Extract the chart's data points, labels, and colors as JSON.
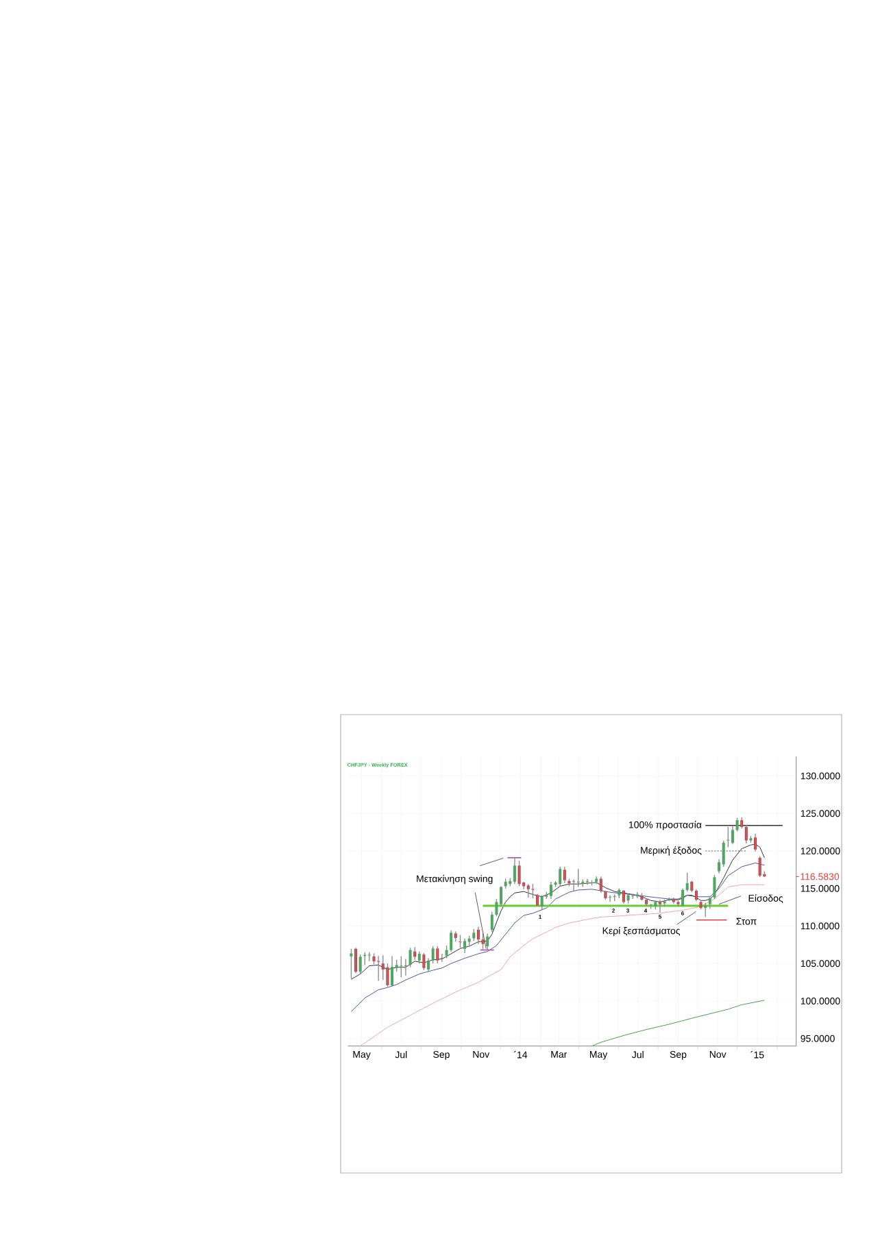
{
  "chart_data": {
    "type": "candlestick",
    "title": "CHFJPY - Weekly  FOREX",
    "xlim": [
      "2013-04-10",
      "2015-03-02"
    ],
    "ylim": [
      94,
      132.6
    ],
    "xticks": [
      {
        "value": "2013-05-01",
        "label": "May"
      },
      {
        "value": "2013-06-01",
        "label": null
      },
      {
        "value": "2013-07-01",
        "label": "Jul"
      },
      {
        "value": "2013-08-01",
        "label": null
      },
      {
        "value": "2013-09-01",
        "label": "Sep"
      },
      {
        "value": "2013-10-01",
        "label": null
      },
      {
        "value": "2013-11-01",
        "label": "Nov"
      },
      {
        "value": "2013-12-01",
        "label": null
      },
      {
        "value": "2014-01-01",
        "label": "´14"
      },
      {
        "value": "2014-02-01",
        "label": null
      },
      {
        "value": "2014-03-01",
        "label": "Mar"
      },
      {
        "value": "2014-04-01",
        "label": null
      },
      {
        "value": "2014-05-01",
        "label": "May"
      },
      {
        "value": "2014-06-01",
        "label": null
      },
      {
        "value": "2014-07-01",
        "label": "Jul"
      },
      {
        "value": "2014-08-01",
        "label": null
      },
      {
        "value": "2014-09-01",
        "label": "Sep"
      },
      {
        "value": "2014-10-01",
        "label": null
      },
      {
        "value": "2014-11-01",
        "label": "Nov"
      },
      {
        "value": "2014-12-01",
        "label": null
      },
      {
        "value": "2015-01-01",
        "label": "´15"
      },
      {
        "value": "2015-02-01",
        "label": null
      }
    ],
    "yticks": [
      {
        "value": 95,
        "label": "95.0000"
      },
      {
        "value": 100,
        "label": "100.0000"
      },
      {
        "value": 105,
        "label": "105.0000"
      },
      {
        "value": 110,
        "label": "110.0000"
      },
      {
        "value": 115,
        "label": "115.0000"
      },
      {
        "value": 120,
        "label": "120.0000"
      },
      {
        "value": 125,
        "label": "125.0000"
      },
      {
        "value": 130,
        "label": "130.0000"
      }
    ],
    "grid": true,
    "series": [
      {
        "x": [
          "2013-04-15",
          "2013-04-22",
          "2013-04-29",
          "2013-05-06",
          "2013-05-13",
          "2013-05-20",
          "2013-05-27",
          "2013-06-03",
          "2013-06-10",
          "2013-06-17",
          "2013-06-24",
          "2013-07-01",
          "2013-07-08",
          "2013-07-15",
          "2013-07-22",
          "2013-07-29",
          "2013-08-05",
          "2013-08-12",
          "2013-08-19",
          "2013-08-26",
          "2013-09-02",
          "2013-09-09",
          "2013-09-16",
          "2013-09-23",
          "2013-09-30",
          "2013-10-07",
          "2013-10-14",
          "2013-10-21",
          "2013-10-28",
          "2013-11-04",
          "2013-11-11",
          "2013-11-18",
          "2013-11-25",
          "2013-12-02",
          "2013-12-09",
          "2013-12-16",
          "2013-12-23",
          "2013-12-30",
          "2014-01-06",
          "2014-01-13",
          "2014-01-20",
          "2014-01-27",
          "2014-02-03",
          "2014-02-10",
          "2014-02-17",
          "2014-02-24",
          "2014-03-03",
          "2014-03-10",
          "2014-03-17",
          "2014-03-24",
          "2014-03-31",
          "2014-04-07",
          "2014-04-14",
          "2014-04-21",
          "2014-04-28",
          "2014-05-05",
          "2014-05-12",
          "2014-05-19",
          "2014-05-26",
          "2014-06-02",
          "2014-06-09",
          "2014-06-16",
          "2014-06-23",
          "2014-06-30",
          "2014-07-07",
          "2014-07-14",
          "2014-07-21",
          "2014-07-28",
          "2014-08-04",
          "2014-08-11",
          "2014-08-18",
          "2014-08-25",
          "2014-09-01",
          "2014-09-08",
          "2014-09-15",
          "2014-09-22",
          "2014-09-29",
          "2014-10-06",
          "2014-10-13",
          "2014-10-20",
          "2014-10-27",
          "2014-11-03",
          "2014-11-10",
          "2014-11-17",
          "2014-11-24",
          "2014-12-01",
          "2014-12-08",
          "2014-12-15",
          "2014-12-22",
          "2014-12-29",
          "2015-01-05",
          "2015-01-12"
        ],
        "ohlc": [
          [
            105.95,
            106.95,
            103.0,
            106.35
          ],
          [
            106.95,
            107.1,
            103.7,
            103.9
          ],
          [
            103.9,
            106.2,
            103.6,
            105.9
          ],
          [
            106.0,
            106.5,
            104.8,
            106.15
          ],
          [
            106.1,
            106.5,
            105.3,
            106.15
          ],
          [
            105.95,
            106.35,
            104.9,
            105.3
          ],
          [
            105.3,
            106.0,
            102.7,
            105.25
          ],
          [
            105.0,
            106.1,
            102.8,
            104.2
          ],
          [
            104.5,
            105.0,
            101.9,
            102.1
          ],
          [
            102.1,
            106.0,
            101.9,
            104.55
          ],
          [
            104.4,
            105.5,
            103.9,
            104.8
          ],
          [
            104.65,
            105.95,
            103.15,
            104.7
          ],
          [
            104.65,
            105.6,
            103.4,
            104.75
          ],
          [
            104.8,
            107.1,
            104.5,
            106.8
          ],
          [
            106.6,
            107.2,
            105.5,
            105.9
          ],
          [
            105.4,
            106.6,
            105.0,
            106.3
          ],
          [
            106.2,
            106.4,
            104.1,
            104.4
          ],
          [
            104.2,
            105.7,
            103.9,
            105.4
          ],
          [
            105.4,
            107.3,
            105.0,
            107.0
          ],
          [
            107.0,
            107.3,
            105.0,
            105.4
          ],
          [
            105.6,
            106.3,
            105.2,
            105.75
          ],
          [
            106.05,
            107.4,
            105.7,
            106.8
          ],
          [
            106.8,
            109.4,
            106.6,
            109.1
          ],
          [
            109.0,
            109.3,
            107.9,
            108.4
          ],
          [
            107.9,
            108.8,
            107.1,
            107.85
          ],
          [
            106.95,
            108.3,
            106.4,
            108.0
          ],
          [
            107.9,
            108.7,
            107.4,
            108.3
          ],
          [
            108.35,
            109.6,
            108.0,
            109.1
          ],
          [
            109.5,
            109.9,
            107.6,
            108.2
          ],
          [
            108.2,
            109.0,
            106.9,
            107.6
          ],
          [
            107.3,
            109.0,
            106.8,
            108.6
          ],
          [
            109.5,
            111.9,
            109.2,
            111.5
          ],
          [
            111.5,
            113.6,
            111.3,
            113.2
          ],
          [
            112.9,
            115.3,
            112.6,
            115.2
          ],
          [
            115.3,
            116.3,
            115.0,
            115.9
          ],
          [
            115.6,
            116.4,
            115.3,
            116.0
          ],
          [
            115.9,
            119.1,
            115.6,
            118.05
          ],
          [
            118.05,
            118.7,
            115.3,
            115.6
          ],
          [
            115.8,
            115.9,
            114.9,
            115.3
          ],
          [
            115.4,
            115.6,
            113.8,
            114.9
          ],
          [
            114.9,
            115.6,
            113.7,
            114.85
          ],
          [
            114.1,
            114.3,
            112.7,
            112.75
          ],
          [
            112.6,
            114.1,
            112.1,
            113.9
          ],
          [
            113.9,
            114.55,
            113.6,
            114.1
          ],
          [
            114.0,
            115.9,
            113.6,
            115.5
          ],
          [
            115.5,
            116.0,
            115.2,
            115.8
          ],
          [
            115.6,
            117.9,
            115.3,
            117.6
          ],
          [
            117.5,
            117.9,
            115.7,
            116.1
          ],
          [
            116.0,
            116.3,
            115.3,
            115.7
          ],
          [
            115.9,
            116.2,
            114.7,
            116.0
          ],
          [
            115.8,
            117.6,
            115.2,
            115.9
          ],
          [
            115.6,
            116.2,
            115.2,
            115.9
          ],
          [
            115.9,
            116.3,
            115.5,
            115.95
          ],
          [
            115.7,
            116.1,
            115.4,
            115.8
          ],
          [
            115.9,
            116.6,
            115.6,
            116.3
          ],
          [
            116.3,
            116.6,
            114.4,
            114.7
          ],
          [
            114.6,
            114.7,
            113.5,
            113.7
          ],
          [
            113.8,
            114.1,
            113.2,
            113.9
          ],
          [
            113.9,
            114.2,
            113.3,
            113.95
          ],
          [
            114.1,
            115.0,
            113.7,
            114.8
          ],
          [
            114.7,
            114.8,
            113.0,
            113.2
          ],
          [
            113.4,
            114.3,
            113.0,
            114.1
          ],
          [
            114.0,
            114.3,
            113.6,
            114.05
          ],
          [
            113.95,
            114.5,
            113.7,
            114.2
          ],
          [
            114.0,
            114.4,
            113.4,
            113.5
          ],
          [
            113.5,
            113.7,
            112.7,
            112.9
          ],
          [
            112.8,
            112.9,
            112.3,
            112.85
          ],
          [
            112.6,
            113.4,
            112.2,
            113.2
          ],
          [
            113.2,
            113.5,
            111.8,
            112.9
          ],
          [
            113.0,
            113.5,
            112.6,
            113.3
          ],
          [
            113.5,
            113.8,
            113.3,
            113.6
          ],
          [
            113.6,
            113.8,
            113.0,
            113.2
          ],
          [
            113.2,
            113.4,
            112.6,
            112.9
          ],
          [
            112.7,
            115.0,
            112.6,
            114.8
          ],
          [
            114.8,
            117.1,
            114.6,
            115.7
          ],
          [
            115.9,
            116.0,
            114.5,
            114.7
          ],
          [
            114.7,
            114.9,
            113.3,
            113.5
          ],
          [
            113.2,
            113.4,
            112.2,
            112.4
          ],
          [
            112.4,
            113.1,
            111.2,
            112.7
          ],
          [
            112.9,
            114.0,
            112.3,
            113.7
          ],
          [
            113.8,
            116.8,
            113.6,
            116.5
          ],
          [
            117.3,
            118.9,
            117.0,
            118.5
          ],
          [
            118.2,
            121.4,
            117.9,
            121.1
          ],
          [
            121.4,
            123.2,
            120.5,
            121.5
          ],
          [
            121.1,
            123.3,
            120.9,
            122.8
          ],
          [
            122.8,
            124.4,
            122.6,
            124.1
          ],
          [
            124.1,
            124.5,
            123.0,
            123.2
          ],
          [
            123.2,
            123.5,
            121.0,
            121.4
          ],
          [
            121.4,
            122.0,
            121.1,
            121.7
          ],
          [
            121.8,
            122.3,
            119.9,
            120.2
          ],
          [
            119.1,
            119.3,
            116.5,
            116.7
          ],
          [
            116.9,
            117.3,
            116.5,
            116.6
          ]
        ]
      },
      {
        "type": "line",
        "color": "#222222",
        "x": [
          "2013-04-15",
          "2013-04-29",
          "2013-05-13",
          "2013-05-27",
          "2013-06-10",
          "2013-06-24",
          "2013-07-08",
          "2013-07-22",
          "2013-08-05",
          "2013-08-19",
          "2013-09-02",
          "2013-09-16",
          "2013-09-30",
          "2013-10-14",
          "2013-10-28",
          "2013-11-11",
          "2013-11-18",
          "2013-11-25",
          "2013-12-02",
          "2013-12-09",
          "2013-12-16",
          "2013-12-23",
          "2014-01-06",
          "2014-01-20",
          "2014-02-03",
          "2014-02-17",
          "2014-03-03",
          "2014-03-17",
          "2014-03-31",
          "2014-04-14",
          "2014-04-28",
          "2014-05-12",
          "2014-05-26",
          "2014-06-09",
          "2014-06-23",
          "2014-07-07",
          "2014-07-21",
          "2014-08-04",
          "2014-08-18",
          "2014-09-01",
          "2014-09-08",
          "2014-09-15",
          "2014-09-22",
          "2014-09-29",
          "2014-10-06",
          "2014-10-13",
          "2014-10-20",
          "2014-10-27",
          "2014-11-10",
          "2014-11-24",
          "2014-12-08",
          "2014-12-22",
          "2014-12-29",
          "2015-01-05",
          "2015-01-12"
        ],
        "values": [
          102.9,
          103.6,
          104.7,
          104.8,
          104.2,
          104.5,
          104.5,
          105.3,
          105.1,
          105.5,
          105.6,
          106.3,
          107.0,
          107.3,
          107.9,
          108.0,
          108.9,
          110.5,
          112.0,
          113.2,
          113.9,
          114.4,
          114.6,
          114.2,
          113.9,
          114.4,
          115.3,
          115.6,
          115.6,
          115.7,
          115.8,
          115.1,
          114.6,
          114.4,
          114.2,
          113.9,
          113.4,
          113.2,
          113.5,
          113.5,
          113.7,
          114.1,
          114.1,
          113.8,
          113.4,
          113.4,
          113.6,
          114.2,
          116.4,
          118.8,
          120.3,
          120.8,
          120.9,
          120.5,
          119.1
        ]
      },
      {
        "type": "line",
        "color": "#3b4aa0",
        "x": [
          "2013-04-15",
          "2013-05-06",
          "2013-05-27",
          "2013-06-10",
          "2013-06-24",
          "2013-07-08",
          "2013-07-29",
          "2013-08-19",
          "2013-09-02",
          "2013-09-16",
          "2013-10-07",
          "2013-10-28",
          "2013-11-11",
          "2013-11-25",
          "2013-12-09",
          "2013-12-23",
          "2014-01-06",
          "2014-01-20",
          "2014-02-10",
          "2014-02-24",
          "2014-03-17",
          "2014-03-31",
          "2014-04-21",
          "2014-05-05",
          "2014-05-19",
          "2014-06-09",
          "2014-06-30",
          "2014-07-28",
          "2014-08-18",
          "2014-09-01",
          "2014-09-15",
          "2014-09-29",
          "2014-10-20",
          "2014-11-03",
          "2014-11-17",
          "2014-12-08",
          "2014-12-29",
          "2015-01-12"
        ],
        "values": [
          98.6,
          100.4,
          101.5,
          101.8,
          102.2,
          102.8,
          103.6,
          104.1,
          104.4,
          105.0,
          105.7,
          106.3,
          106.6,
          107.4,
          108.9,
          110.4,
          111.4,
          111.7,
          112.4,
          113.6,
          114.5,
          114.8,
          114.9,
          114.7,
          114.5,
          114.3,
          114.1,
          113.8,
          113.6,
          113.6,
          114.1,
          113.9,
          113.9,
          115.0,
          116.7,
          117.9,
          118.4,
          118.1
        ]
      },
      {
        "type": "line",
        "color": "#f0a0a0",
        "x": [
          "2013-04-29",
          "2013-06-10",
          "2013-07-15",
          "2013-08-19",
          "2013-09-23",
          "2013-10-28",
          "2013-11-11",
          "2013-12-02",
          "2013-12-16",
          "2014-01-06",
          "2014-01-20",
          "2014-02-10",
          "2014-02-24",
          "2014-03-17",
          "2014-04-21",
          "2014-05-05",
          "2014-05-26",
          "2014-06-30",
          "2014-08-04",
          "2014-09-08",
          "2014-10-06",
          "2014-10-27",
          "2014-11-17",
          "2014-12-08",
          "2015-01-12"
        ],
        "values": [
          94.0,
          96.5,
          98.1,
          99.7,
          101.2,
          102.5,
          103.2,
          104.2,
          105.9,
          107.4,
          108.3,
          109.2,
          109.8,
          110.4,
          111.0,
          111.2,
          111.3,
          111.5,
          111.7,
          112.1,
          112.6,
          113.6,
          115.2,
          115.5,
          115.5
        ]
      },
      {
        "type": "line",
        "color": "#3a9a3a",
        "x": [
          "2014-04-21",
          "2014-05-05",
          "2014-06-09",
          "2014-07-14",
          "2014-08-18",
          "2014-09-22",
          "2014-10-20",
          "2014-11-17",
          "2014-12-08",
          "2015-01-12"
        ],
        "values": [
          94.0,
          94.5,
          95.4,
          96.2,
          96.9,
          97.7,
          98.3,
          98.9,
          99.5,
          100.1
        ]
      },
      {
        "type": "line",
        "color": "#66cc33",
        "x": [
          "2013-11-04",
          "2014-11-17"
        ],
        "values": [
          112.7,
          112.7
        ]
      },
      {
        "type": "line",
        "color": "#b04ab0",
        "x": [
          "2013-12-12",
          "2014-01-02"
        ],
        "values": [
          119.1,
          119.1
        ]
      },
      {
        "type": "line",
        "color": "#b04ab0",
        "x": [
          "2013-10-31",
          "2013-11-21"
        ],
        "values": [
          106.8,
          106.8
        ]
      },
      {
        "type": "line",
        "color": "#333333",
        "x": [
          "2014-10-13",
          "2015-02-09"
        ],
        "values": [
          123.4,
          123.4
        ]
      },
      {
        "type": "line",
        "color": "#555555",
        "line_style": "dotted",
        "x": [
          "2014-10-13",
          "2014-12-14"
        ],
        "values": [
          120.0,
          120.0
        ]
      },
      {
        "type": "line",
        "color": "#e84040",
        "x": [
          "2014-09-29",
          "2014-11-15"
        ],
        "values": [
          110.8,
          110.8
        ]
      }
    ],
    "ref_lines": [
      {
        "axis": "y",
        "value": 116.583,
        "label": "116.5830",
        "color": "#e8403a"
      }
    ],
    "annotations": [
      {
        "text": "100% προστασία",
        "x": "2014-10-13",
        "y": 123.4
      },
      {
        "text": "Μερική έξοδος",
        "x": "2014-10-13",
        "y": 120.0
      },
      {
        "text": "Μετακίνηση swing",
        "x": "2013-11-10",
        "y": 106.8
      },
      {
        "text": "Κερί ξεσπάσματος",
        "x": "2014-10-06",
        "y": 112.2
      },
      {
        "text": "Είσοδος",
        "x": "2014-11-03",
        "y": 112.9
      },
      {
        "text": "Στοπ",
        "x": "2014-11-15",
        "y": 110.8
      },
      "1",
      "2",
      "3",
      "4",
      "5",
      "6"
    ]
  }
}
